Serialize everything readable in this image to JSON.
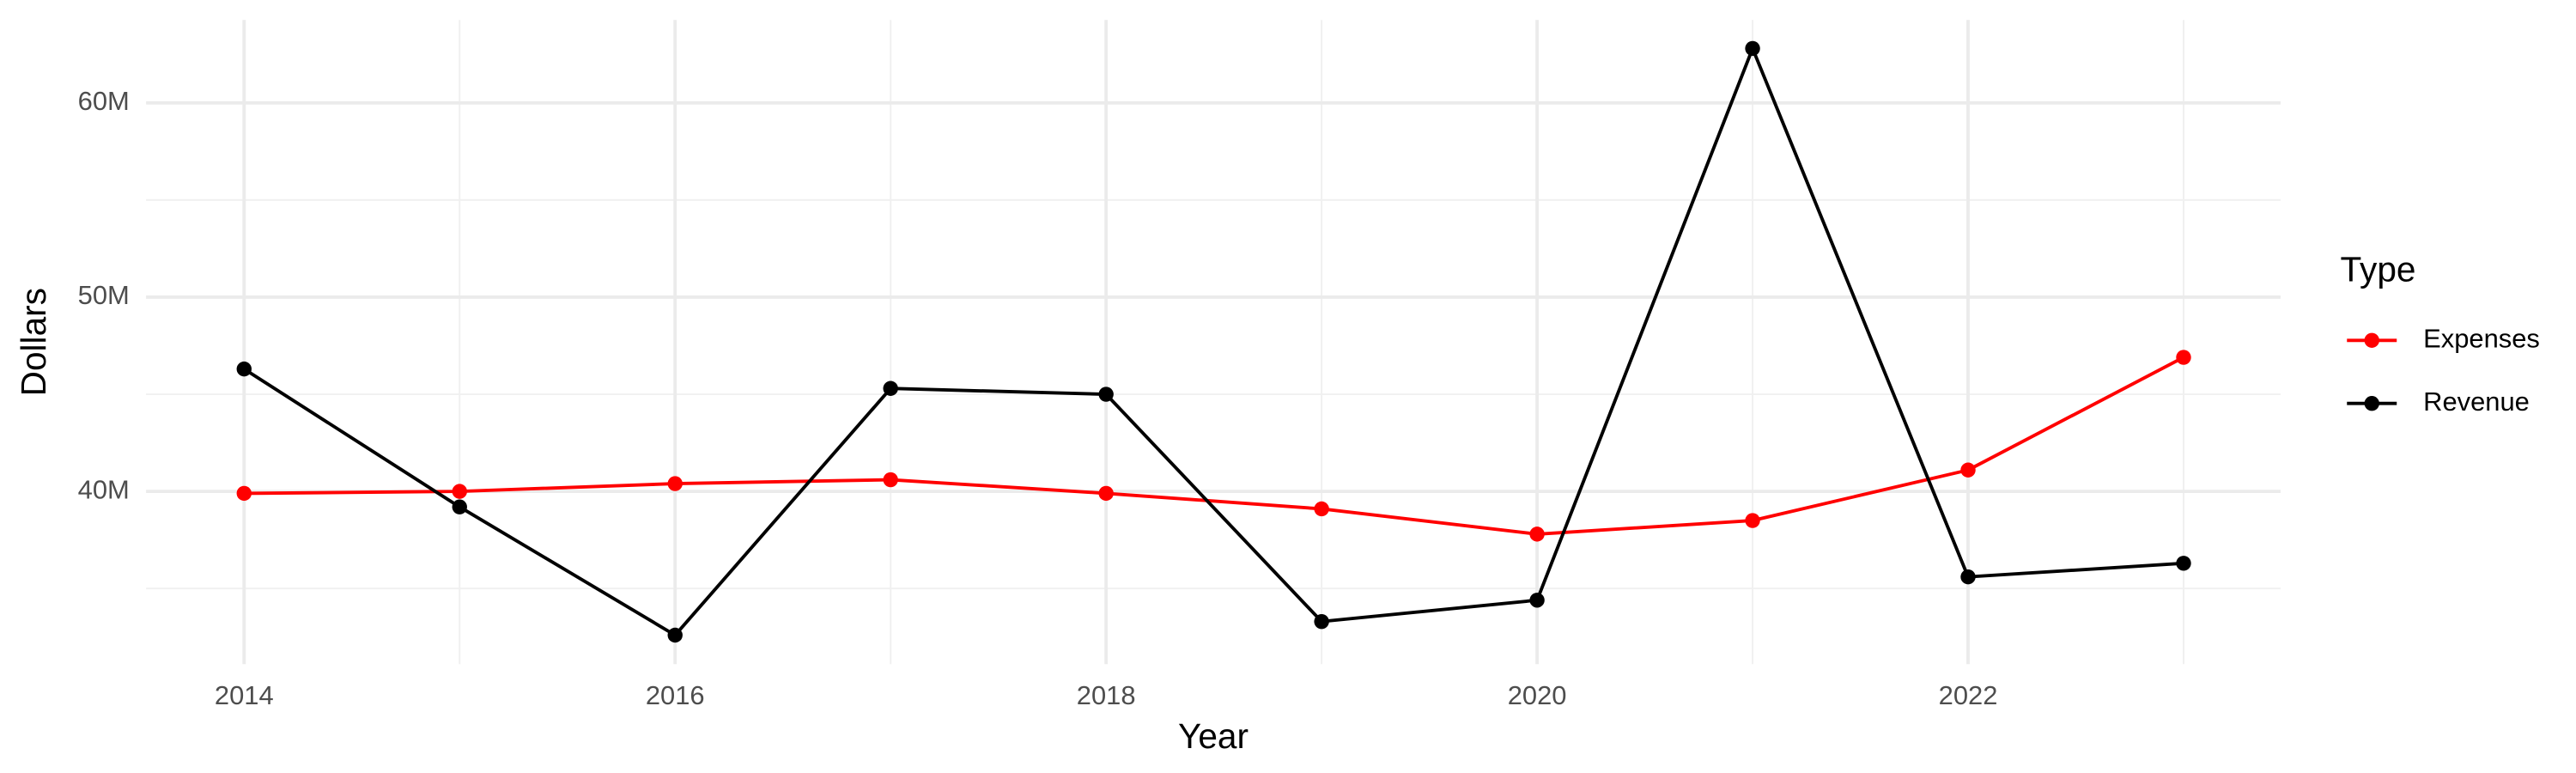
{
  "chart_data": {
    "type": "line",
    "x_label": "Year",
    "y_label": "Dollars",
    "legend_title": "Type",
    "x": [
      2014,
      2015,
      2016,
      2017,
      2018,
      2019,
      2020,
      2021,
      2022,
      2023
    ],
    "series": [
      {
        "name": "Expenses",
        "color": "#ff0000",
        "values": [
          39900000,
          40000000,
          40400000,
          40600000,
          39900000,
          39100000,
          37800000,
          38500000,
          41100000,
          46900000
        ]
      },
      {
        "name": "Revenue",
        "color": "#000000",
        "values": [
          46300000,
          39200000,
          32600000,
          45300000,
          45000000,
          33300000,
          34400000,
          62800000,
          35600000,
          36300000
        ]
      }
    ],
    "xlim": [
      2013.545,
      2023.45
    ],
    "xticks": [
      2014,
      2016,
      2018,
      2020,
      2022
    ],
    "ylim": [
      31110000,
      64270000
    ],
    "yticks": [
      {
        "value": 40000000,
        "label": "40M"
      },
      {
        "value": 50000000,
        "label": "50M"
      },
      {
        "value": 60000000,
        "label": "60M"
      }
    ],
    "grid": true,
    "legend": "right"
  }
}
